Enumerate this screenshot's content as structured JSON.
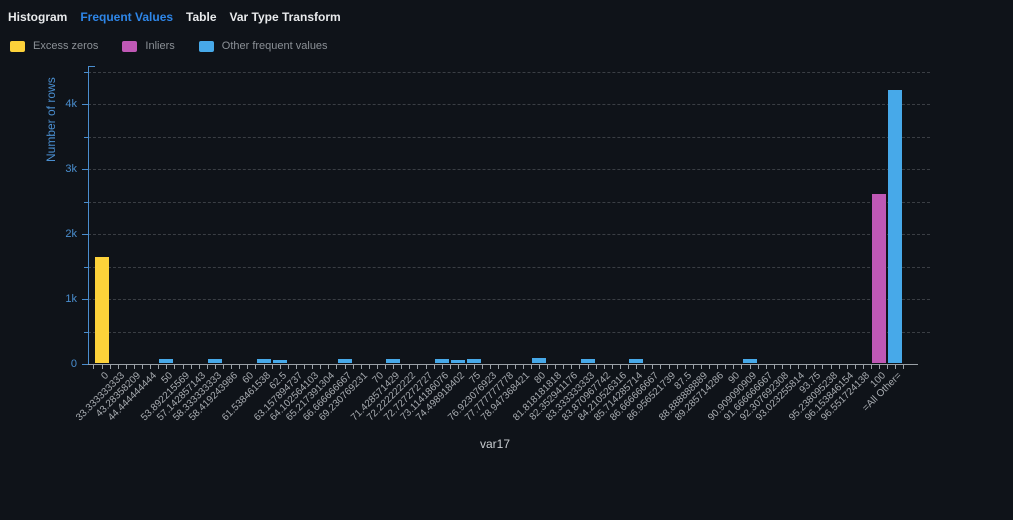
{
  "tabs": [
    {
      "label": "Histogram",
      "active": false
    },
    {
      "label": "Frequent Values",
      "active": true
    },
    {
      "label": "Table",
      "active": false
    },
    {
      "label": "Var Type Transform",
      "active": false
    }
  ],
  "legend": [
    {
      "label": "Excess zeros",
      "group": "zeros"
    },
    {
      "label": "Inliers",
      "group": "inlier"
    },
    {
      "label": "Other frequent values",
      "group": "other"
    }
  ],
  "colors": {
    "background": "#0f1319",
    "accent_tab": "#2e86e8",
    "tab_text": "#e8eaec",
    "legend_text": "#8b9096",
    "axis_blue": "#4a8ecf",
    "grid": "#3a3e44",
    "x_axis": "#9aa0a6",
    "x_label": "#a7abb0",
    "xlabel_text": "#c9cdd1",
    "excess_zeros": "#fdd23a",
    "inliers": "#bf58b5",
    "other_frequent": "#47a9e9"
  },
  "chart_data": {
    "type": "bar",
    "title": "",
    "xlabel": "var17",
    "ylabel": "Number of rows",
    "ylim": [
      0,
      4500
    ],
    "ytick_step": 1000,
    "ytick_labels": [
      "0",
      "1k",
      "2k",
      "3k",
      "4k"
    ],
    "grid": "dashed horizontal every 500",
    "legend_position": "top-left",
    "categories": [
      "0",
      "33.333333333",
      "43.28358209",
      "44.444444444",
      "50",
      "53.892215569",
      "57.142857143",
      "58.333333333",
      "58.419243986",
      "60",
      "61.538461538",
      "62.5",
      "63.157894737",
      "64.102564103",
      "65.217391304",
      "66.666666667",
      "69.230769231",
      "70",
      "71.428571429",
      "72.222222222",
      "72.727272727",
      "73.114186076",
      "74.498918402",
      "75",
      "76.923076923",
      "77.777777778",
      "78.947368421",
      "80",
      "81.818181818",
      "82.352941176",
      "83.333333333",
      "83.870967742",
      "84.210526316",
      "85.714285714",
      "86.666666667",
      "86.956521739",
      "87.5",
      "88.888888889",
      "89.285714286",
      "90",
      "90.909090909",
      "91.666666667",
      "92.307692308",
      "93.023255814",
      "93.75",
      "95.238095238",
      "96.153846154",
      "96.551724138",
      "100",
      "=All Other="
    ],
    "values": [
      1630,
      0,
      0,
      0,
      60,
      0,
      0,
      55,
      0,
      0,
      55,
      50,
      0,
      0,
      0,
      60,
      0,
      0,
      55,
      0,
      0,
      55,
      50,
      55,
      0,
      0,
      0,
      75,
      0,
      0,
      60,
      0,
      0,
      55,
      0,
      0,
      0,
      0,
      0,
      0,
      65,
      0,
      0,
      0,
      0,
      0,
      0,
      0,
      2600,
      4200
    ],
    "groups": [
      "zeros",
      "none",
      "none",
      "none",
      "other",
      "none",
      "none",
      "other",
      "none",
      "none",
      "other",
      "other",
      "none",
      "none",
      "none",
      "other",
      "none",
      "none",
      "other",
      "none",
      "none",
      "other",
      "other",
      "other",
      "none",
      "none",
      "none",
      "other",
      "none",
      "none",
      "other",
      "none",
      "none",
      "other",
      "none",
      "none",
      "none",
      "none",
      "none",
      "none",
      "other",
      "none",
      "none",
      "none",
      "none",
      "none",
      "none",
      "none",
      "inlier",
      "other"
    ]
  }
}
